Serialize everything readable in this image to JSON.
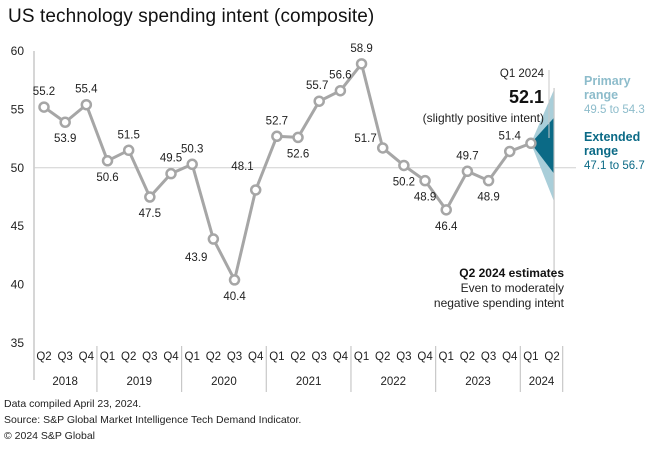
{
  "title": "US technology spending intent (composite)",
  "footer": {
    "line1": "Data compiled April 23, 2024.",
    "line2": "Source: S&P Global Market Intelligence Tech Demand Indicator.",
    "line3": "© 2024 S&P Global"
  },
  "colors": {
    "line": "#a6a6a6",
    "axis": "#c8c8c8",
    "primary_range": "#a9ced9",
    "extended_range": "#0b6a86",
    "primary_label": "#8dbccb",
    "extended_label": "#0b6a86"
  },
  "chart_data": {
    "type": "line",
    "title": "US technology spending intent (composite)",
    "xlabel": "",
    "ylabel": "",
    "ylim": [
      35,
      60
    ],
    "yticks": [
      35,
      40,
      45,
      50,
      55,
      60
    ],
    "reference_line": 50,
    "grid": false,
    "x_quarters": [
      "Q2",
      "Q3",
      "Q4",
      "Q1",
      "Q2",
      "Q3",
      "Q4",
      "Q1",
      "Q2",
      "Q3",
      "Q4",
      "Q1",
      "Q2",
      "Q3",
      "Q4",
      "Q1",
      "Q2",
      "Q3",
      "Q4",
      "Q1",
      "Q2",
      "Q3",
      "Q4",
      "Q1",
      "Q2"
    ],
    "x_years": [
      {
        "label": "2018",
        "count": 3
      },
      {
        "label": "2019",
        "count": 4
      },
      {
        "label": "2020",
        "count": 4
      },
      {
        "label": "2021",
        "count": 4
      },
      {
        "label": "2022",
        "count": 4
      },
      {
        "label": "2023",
        "count": 4
      },
      {
        "label": "2024",
        "count": 2
      }
    ],
    "series": [
      {
        "name": "US technology spending intent (composite)",
        "values": [
          55.2,
          53.9,
          55.4,
          50.6,
          51.5,
          47.5,
          49.5,
          50.3,
          43.9,
          40.4,
          48.1,
          52.7,
          52.6,
          55.7,
          56.6,
          58.9,
          51.7,
          50.2,
          48.9,
          46.4,
          49.7,
          48.9,
          51.4,
          52.1
        ],
        "labels": [
          "55.2",
          "53.9",
          "55.4",
          "50.6",
          "51.5",
          "47.5",
          "49.5",
          "50.3",
          "43.9",
          "40.4",
          "48.1",
          "52.7",
          "52.6",
          "55.7",
          "56.6",
          "58.9",
          "51.7",
          "50.2",
          "48.9",
          "46.4",
          "49.7",
          "48.9",
          "51.4",
          ""
        ]
      }
    ],
    "forecast": {
      "period": "Q2 2024",
      "primary_range": [
        49.5,
        54.3
      ],
      "extended_range": [
        47.1,
        56.7
      ]
    },
    "annotations": {
      "latest_period": "Q1 2024",
      "latest_value": "52.1",
      "latest_note": "(slightly positive intent)",
      "primary_title_1": "Primary",
      "primary_title_2": "range",
      "primary_text": "49.5 to 54.3",
      "extended_title_1": "Extended",
      "extended_title_2": "range",
      "extended_text": "47.1 to 56.7",
      "estimate_title": "Q2 2024 estimates",
      "estimate_line1": "Even to moderately",
      "estimate_line2": "negative spending intent"
    }
  }
}
